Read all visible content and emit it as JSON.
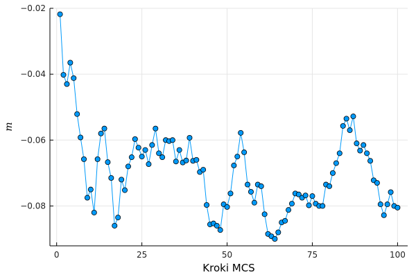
{
  "chart_data": {
    "type": "line",
    "title": "",
    "xlabel": "Kroki MCS",
    "ylabel": "m",
    "xlim": [
      -1.97,
      102.97
    ],
    "ylim": [
      -0.0921,
      -0.02
    ],
    "grid": true,
    "legend": "none",
    "x_ticks": [
      0,
      25,
      50,
      75,
      100
    ],
    "x_tick_labels": [
      "0",
      "25",
      "50",
      "75",
      "100"
    ],
    "y_ticks": [
      -0.08,
      -0.06,
      -0.04,
      -0.02
    ],
    "y_tick_labels": [
      "−0.08",
      "−0.06",
      "−0.04",
      "−0.02"
    ],
    "colors": {
      "series": "#009AFA",
      "marker_stroke": "#000000",
      "grid": "#E6E6E6",
      "axis": "#000000"
    },
    "series": [
      {
        "marker": "circle",
        "x": [
          1,
          2,
          3,
          4,
          5,
          6,
          7,
          8,
          9,
          10,
          11,
          12,
          13,
          14,
          15,
          16,
          17,
          18,
          19,
          20,
          21,
          22,
          23,
          24,
          25,
          26,
          27,
          28,
          29,
          30,
          31,
          32,
          33,
          34,
          35,
          36,
          37,
          38,
          39,
          40,
          41,
          42,
          43,
          44,
          45,
          46,
          47,
          48,
          49,
          50,
          51,
          52,
          53,
          54,
          55,
          56,
          57,
          58,
          59,
          60,
          61,
          62,
          63,
          64,
          65,
          66,
          67,
          68,
          69,
          70,
          71,
          72,
          73,
          74,
          75,
          76,
          77,
          78,
          79,
          80,
          81,
          82,
          83,
          84,
          85,
          86,
          87,
          88,
          89,
          90,
          91,
          92,
          93,
          94,
          95,
          96,
          97,
          98,
          99,
          100
        ],
        "y": [
          -0.0218,
          -0.0402,
          -0.043,
          -0.0365,
          -0.0412,
          -0.0521,
          -0.0592,
          -0.0658,
          -0.0775,
          -0.075,
          -0.082,
          -0.0658,
          -0.058,
          -0.0565,
          -0.0667,
          -0.0715,
          -0.086,
          -0.0835,
          -0.072,
          -0.0752,
          -0.068,
          -0.0652,
          -0.0597,
          -0.0623,
          -0.065,
          -0.063,
          -0.0673,
          -0.0615,
          -0.0565,
          -0.064,
          -0.0652,
          -0.06,
          -0.0603,
          -0.06,
          -0.0665,
          -0.063,
          -0.0668,
          -0.0662,
          -0.0593,
          -0.0663,
          -0.066,
          -0.0697,
          -0.069,
          -0.0797,
          -0.0856,
          -0.0853,
          -0.086,
          -0.0873,
          -0.0795,
          -0.0803,
          -0.0762,
          -0.0677,
          -0.065,
          -0.0578,
          -0.0637,
          -0.0735,
          -0.0757,
          -0.079,
          -0.0735,
          -0.074,
          -0.0825,
          -0.0885,
          -0.0892,
          -0.09,
          -0.088,
          -0.085,
          -0.0845,
          -0.0812,
          -0.0793,
          -0.0762,
          -0.0765,
          -0.0775,
          -0.0768,
          -0.0798,
          -0.077,
          -0.0793,
          -0.08,
          -0.08,
          -0.0735,
          -0.074,
          -0.07,
          -0.067,
          -0.064,
          -0.0557,
          -0.0535,
          -0.057,
          -0.0528,
          -0.061,
          -0.0632,
          -0.0615,
          -0.064,
          -0.0663,
          -0.0722,
          -0.073,
          -0.0795,
          -0.0828,
          -0.0795,
          -0.0758,
          -0.08,
          -0.0805
        ]
      }
    ]
  }
}
